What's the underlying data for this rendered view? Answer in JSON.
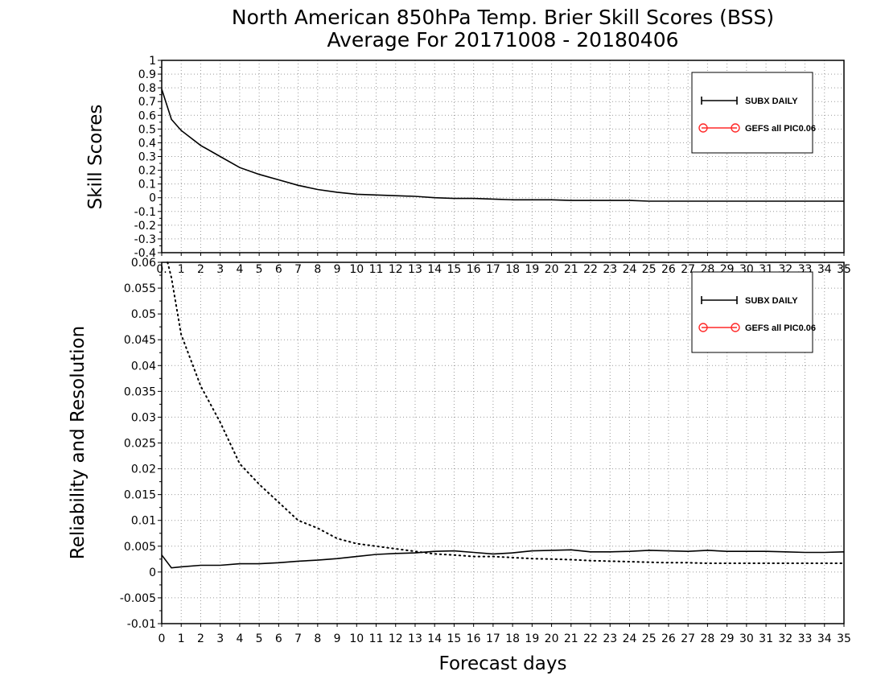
{
  "title_line1": "North American 850hPa Temp. Brier Skill Scores (BSS)",
  "title_line2": "Average For 20171008 - 20180406",
  "legend": [
    {
      "label": "SUBX DAILY",
      "color": "#000000",
      "marker": "plus"
    },
    {
      "label": "GEFS all PIC0.06",
      "color": "#ff2a2a",
      "marker": "circle"
    }
  ],
  "chart_data": [
    {
      "type": "line",
      "ylabel": "Skill Scores",
      "xlabel": "",
      "xlim": [
        0,
        35
      ],
      "ylim": [
        -0.4,
        1
      ],
      "y_ticks": [
        "-0.4",
        "-0.3",
        "-0.2",
        "-0.1",
        "0",
        "0.1",
        "0.2",
        "0.3",
        "0.4",
        "0.5",
        "0.6",
        "0.7",
        "0.8",
        "0.9",
        "1"
      ],
      "x_ticks": [
        "0.",
        "1",
        "2",
        "3",
        "4",
        "5",
        "6",
        "7",
        "8",
        "9",
        "10",
        "11",
        "12",
        "13",
        "14",
        "15",
        "16",
        "17",
        "18",
        "19",
        "20",
        "21",
        "22",
        "23",
        "24",
        "25",
        "26",
        "27",
        "28",
        "29",
        "30",
        "31",
        "32",
        "33",
        "34",
        "35"
      ],
      "grid": true,
      "legend_position": "top-right",
      "series": [
        {
          "name": "SUBX DAILY",
          "style": "solid",
          "x": [
            0,
            0.5,
            1,
            2,
            3,
            4,
            5,
            6,
            7,
            8,
            9,
            10,
            11,
            12,
            13,
            14,
            15,
            16,
            17,
            18,
            19,
            20,
            21,
            22,
            23,
            24,
            25,
            26,
            27,
            28,
            29,
            30,
            31,
            32,
            33,
            34,
            35
          ],
          "values": [
            0.79,
            0.57,
            0.49,
            0.38,
            0.3,
            0.22,
            0.17,
            0.13,
            0.09,
            0.06,
            0.04,
            0.025,
            0.02,
            0.015,
            0.01,
            0.0,
            -0.005,
            -0.005,
            -0.01,
            -0.015,
            -0.015,
            -0.015,
            -0.02,
            -0.02,
            -0.02,
            -0.02,
            -0.025,
            -0.025,
            -0.025,
            -0.025,
            -0.025,
            -0.025,
            -0.025,
            -0.025,
            -0.025,
            -0.025,
            -0.025
          ]
        }
      ]
    },
    {
      "type": "line",
      "ylabel": "Reliability and Resolution",
      "xlabel": "Forecast days",
      "xlim": [
        0,
        35
      ],
      "ylim": [
        -0.01,
        0.06
      ],
      "y_ticks": [
        "-0.01",
        "-0.005",
        "0",
        "0.005",
        "0.01",
        "0.015",
        "0.02",
        "0.025",
        "0.03",
        "0.035",
        "0.04",
        "0.045",
        "0.05",
        "0.055",
        "0.06"
      ],
      "x_ticks": [
        "0",
        "1",
        "2",
        "3",
        "4",
        "5",
        "6",
        "7",
        "8",
        "9",
        "10",
        "11",
        "12",
        "13",
        "14",
        "15",
        "16",
        "17",
        "18",
        "19",
        "20",
        "21",
        "22",
        "23",
        "24",
        "25",
        "26",
        "27",
        "28",
        "29",
        "30",
        "31",
        "32",
        "33",
        "34",
        "35"
      ],
      "grid": true,
      "legend_position": "top-right",
      "series": [
        {
          "name": "Reliability",
          "style": "solid",
          "x": [
            0,
            0.5,
            1,
            2,
            3,
            4,
            5,
            6,
            7,
            8,
            9,
            10,
            11,
            12,
            13,
            14,
            15,
            16,
            17,
            18,
            19,
            20,
            21,
            22,
            23,
            24,
            25,
            26,
            27,
            28,
            29,
            30,
            31,
            32,
            33,
            34,
            35
          ],
          "values": [
            0.0033,
            0.0008,
            0.001,
            0.0013,
            0.0013,
            0.0016,
            0.0016,
            0.0018,
            0.0021,
            0.0023,
            0.0026,
            0.003,
            0.0034,
            0.0036,
            0.0037,
            0.004,
            0.0041,
            0.0038,
            0.0035,
            0.0037,
            0.0041,
            0.0042,
            0.0043,
            0.0039,
            0.0039,
            0.004,
            0.0042,
            0.0041,
            0.004,
            0.0042,
            0.004,
            0.004,
            0.004,
            0.0039,
            0.0038,
            0.0038,
            0.0039
          ]
        },
        {
          "name": "Resolution",
          "style": "dotted",
          "x": [
            0.3,
            0.5,
            1,
            2,
            3,
            4,
            5,
            6,
            7,
            8,
            9,
            10,
            11,
            12,
            13,
            14,
            15,
            16,
            17,
            18,
            19,
            20,
            21,
            22,
            23,
            24,
            25,
            26,
            27,
            28,
            29,
            30,
            31,
            32,
            33,
            34,
            35
          ],
          "values": [
            0.06,
            0.057,
            0.046,
            0.036,
            0.029,
            0.021,
            0.017,
            0.0135,
            0.01,
            0.0085,
            0.0065,
            0.0055,
            0.005,
            0.0045,
            0.004,
            0.0035,
            0.0033,
            0.003,
            0.003,
            0.0028,
            0.0026,
            0.0025,
            0.0024,
            0.0022,
            0.0021,
            0.002,
            0.0019,
            0.0018,
            0.0018,
            0.0017,
            0.0017,
            0.0017,
            0.0017,
            0.0017,
            0.0017,
            0.0017,
            0.0017
          ]
        }
      ]
    }
  ]
}
